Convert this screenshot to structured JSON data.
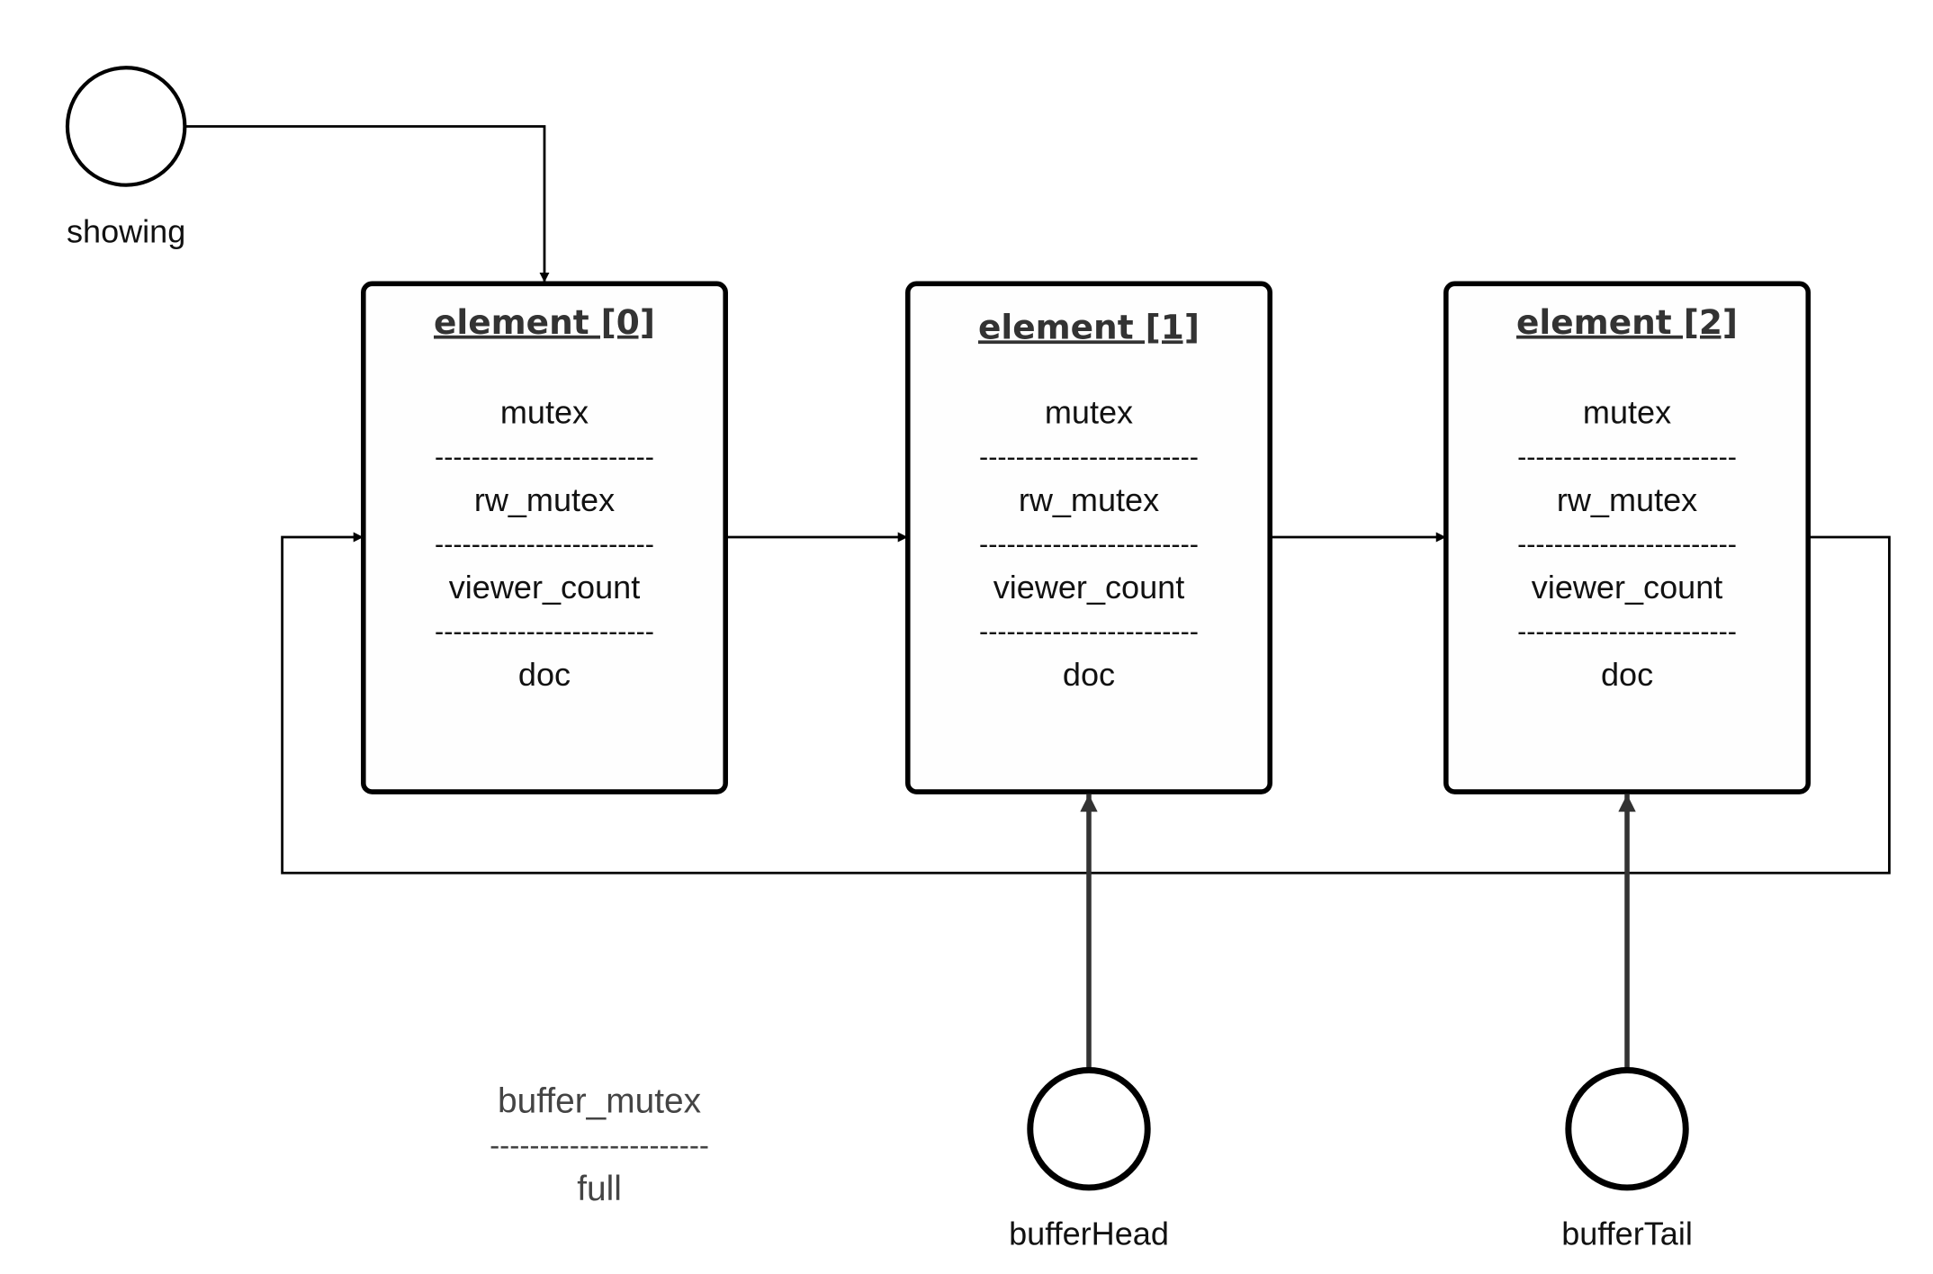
{
  "pointers": {
    "showing": {
      "label": "showing"
    },
    "buffer_head": {
      "label": "bufferHead"
    },
    "buffer_tail": {
      "label": "bufferTail"
    }
  },
  "elements": [
    {
      "title": "element [0]",
      "fields": [
        "mutex",
        "rw_mutex",
        "viewer_count",
        "doc"
      ]
    },
    {
      "title": "element [1]",
      "fields": [
        "mutex",
        "rw_mutex",
        "viewer_count",
        "doc"
      ]
    },
    {
      "title": "element [2]",
      "fields": [
        "mutex",
        "rw_mutex",
        "viewer_count",
        "doc"
      ]
    }
  ],
  "separator": "------------------------",
  "buffer_info": {
    "line1": "buffer_mutex",
    "separator": "----------------------",
    "line2": "full"
  }
}
